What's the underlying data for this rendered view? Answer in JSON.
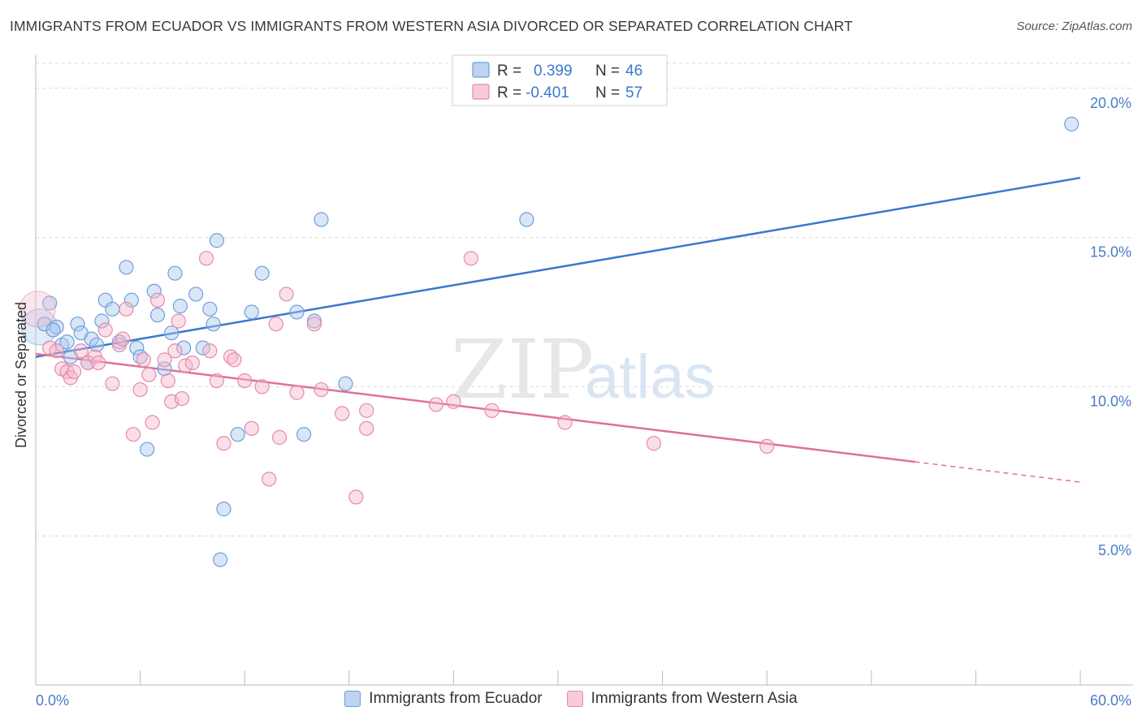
{
  "title": "IMMIGRANTS FROM ECUADOR VS IMMIGRANTS FROM WESTERN ASIA DIVORCED OR SEPARATED CORRELATION CHART",
  "source": "Source: ZipAtlas.com",
  "watermark": {
    "zip": "ZIP",
    "atlas": "atlas"
  },
  "colors": {
    "blue_fill": "#a9c8f0",
    "blue_stroke": "#6f9fd8",
    "blue_line": "#3a78cf",
    "pink_fill": "#f5b8cd",
    "pink_stroke": "#e68aaa",
    "pink_line": "#e0709a",
    "axis_text": "#4a7cc8",
    "grid": "#d9d9d9"
  },
  "stats_legend": [
    {
      "r_label": "R =",
      "r_value": "0.399",
      "n_label": "N =",
      "n_value": "46"
    },
    {
      "r_label": "R =",
      "r_value": "-0.401",
      "n_label": "N =",
      "n_value": "57"
    }
  ],
  "chart_data": {
    "type": "scatter",
    "xlabel": "",
    "ylabel": "Divorced or Separated",
    "xlim": [
      0,
      60
    ],
    "ylim": [
      0,
      21
    ],
    "x_tick_labels": [
      "0.0%",
      "60.0%"
    ],
    "y_ticks": [
      5,
      10,
      15,
      20
    ],
    "y_tick_labels": [
      "5.0%",
      "10.0%",
      "15.0%",
      "20.0%"
    ],
    "legend_position": "top-center",
    "grid": true,
    "series": [
      {
        "name": "Immigrants from Ecuador",
        "color": "blue",
        "trend": {
          "x": [
            0,
            60
          ],
          "y": [
            11.0,
            17.0
          ],
          "dashed_from": null
        },
        "points": [
          [
            0.2,
            12.0,
            "L"
          ],
          [
            0.5,
            12.1
          ],
          [
            0.8,
            12.8
          ],
          [
            1.2,
            12.0
          ],
          [
            1.5,
            11.4
          ],
          [
            1.8,
            11.5
          ],
          [
            2.0,
            11.0
          ],
          [
            2.4,
            12.1
          ],
          [
            2.6,
            11.8
          ],
          [
            3.0,
            10.8
          ],
          [
            3.2,
            11.6
          ],
          [
            3.5,
            11.4
          ],
          [
            3.8,
            12.2
          ],
          [
            4.0,
            12.9
          ],
          [
            4.4,
            12.6
          ],
          [
            4.8,
            11.5
          ],
          [
            5.2,
            14.0
          ],
          [
            5.5,
            12.9
          ],
          [
            5.8,
            11.3
          ],
          [
            6.0,
            11.0
          ],
          [
            6.4,
            7.9
          ],
          [
            6.8,
            13.2
          ],
          [
            7.0,
            12.4
          ],
          [
            7.4,
            10.6
          ],
          [
            7.8,
            11.8
          ],
          [
            8.0,
            13.8
          ],
          [
            8.3,
            12.7
          ],
          [
            8.5,
            11.3
          ],
          [
            9.2,
            13.1
          ],
          [
            9.6,
            11.3
          ],
          [
            10.0,
            12.6
          ],
          [
            10.2,
            12.1
          ],
          [
            10.4,
            14.9
          ],
          [
            10.6,
            4.2
          ],
          [
            10.8,
            5.9
          ],
          [
            11.6,
            8.4
          ],
          [
            12.4,
            12.5
          ],
          [
            13.0,
            13.8
          ],
          [
            15.0,
            12.5
          ],
          [
            15.4,
            8.4
          ],
          [
            16.0,
            12.2
          ],
          [
            16.4,
            15.6
          ],
          [
            17.8,
            10.1
          ],
          [
            28.2,
            15.6
          ],
          [
            59.5,
            18.8
          ],
          [
            1.0,
            11.9
          ]
        ]
      },
      {
        "name": "Immigrants from Western Asia",
        "color": "pink",
        "trend": {
          "x": [
            0,
            60
          ],
          "y": [
            11.1,
            6.8
          ],
          "dashed_from": 50.5
        },
        "points": [
          [
            0.1,
            12.6,
            "L"
          ],
          [
            0.8,
            11.3
          ],
          [
            1.2,
            11.2
          ],
          [
            1.5,
            10.6
          ],
          [
            1.8,
            10.5
          ],
          [
            2.0,
            10.3
          ],
          [
            2.2,
            10.5
          ],
          [
            2.6,
            11.2
          ],
          [
            3.0,
            10.8
          ],
          [
            3.4,
            11.0
          ],
          [
            3.6,
            10.8
          ],
          [
            4.0,
            11.9
          ],
          [
            4.4,
            10.1
          ],
          [
            4.8,
            11.4
          ],
          [
            5.0,
            11.6
          ],
          [
            5.2,
            12.6
          ],
          [
            5.6,
            8.4
          ],
          [
            6.0,
            9.9
          ],
          [
            6.2,
            10.9
          ],
          [
            6.5,
            10.4
          ],
          [
            6.7,
            8.8
          ],
          [
            7.0,
            12.9
          ],
          [
            7.4,
            10.9
          ],
          [
            7.6,
            10.2
          ],
          [
            7.8,
            9.5
          ],
          [
            8.0,
            11.2
          ],
          [
            8.2,
            12.2
          ],
          [
            8.4,
            9.6
          ],
          [
            8.6,
            10.7
          ],
          [
            9.0,
            10.8
          ],
          [
            9.8,
            14.3
          ],
          [
            10.0,
            11.2
          ],
          [
            10.4,
            10.2
          ],
          [
            10.8,
            8.1
          ],
          [
            11.2,
            11.0
          ],
          [
            11.4,
            10.9
          ],
          [
            12.0,
            10.2
          ],
          [
            12.4,
            8.6
          ],
          [
            13.0,
            10.0
          ],
          [
            13.4,
            6.9
          ],
          [
            13.8,
            12.1
          ],
          [
            14.0,
            8.3
          ],
          [
            14.4,
            13.1
          ],
          [
            15.0,
            9.8
          ],
          [
            16.0,
            12.1
          ],
          [
            16.4,
            9.9
          ],
          [
            17.6,
            9.1
          ],
          [
            18.4,
            6.3
          ],
          [
            19.0,
            8.6
          ],
          [
            19.0,
            9.2
          ],
          [
            23.0,
            9.4
          ],
          [
            24.0,
            9.5
          ],
          [
            25.0,
            14.3
          ],
          [
            26.2,
            9.2
          ],
          [
            30.4,
            8.8
          ],
          [
            35.5,
            8.1
          ],
          [
            42.0,
            8.0
          ]
        ]
      }
    ]
  }
}
